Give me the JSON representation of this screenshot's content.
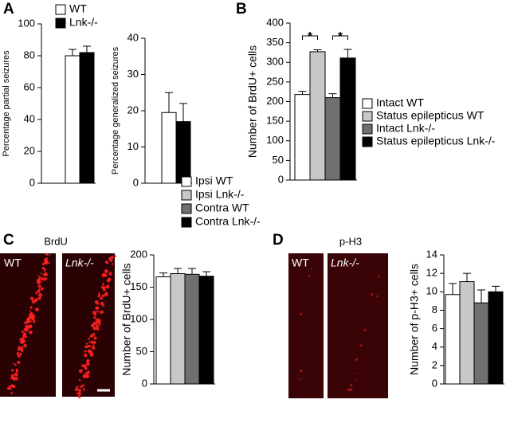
{
  "panel_labels": [
    "A",
    "B",
    "C",
    "D"
  ],
  "images": [
    {
      "label": "BrdU",
      "panels": [
        "WT",
        "Lnk-/-"
      ]
    },
    {
      "label": "p-H3",
      "panels": [
        "WT",
        "Lnk-/-"
      ]
    }
  ],
  "chart_data": [
    {
      "type": "bar",
      "ylabel": "Percentage partial seizures",
      "ylim": [
        0,
        100
      ],
      "yticks": [
        0,
        20,
        40,
        60,
        80,
        100
      ],
      "series": [
        {
          "name": "WT",
          "color": "#ffffff",
          "values": [
            80
          ],
          "errors": [
            4
          ]
        },
        {
          "name": "Lnk-/-",
          "color": "#000000",
          "values": [
            82
          ],
          "errors": [
            4
          ]
        }
      ]
    },
    {
      "type": "bar",
      "ylabel": "Percentage generalized seizures",
      "ylim": [
        0,
        40
      ],
      "yticks": [
        0,
        10,
        20,
        30,
        40
      ],
      "series": [
        {
          "color": "#ffffff",
          "values": [
            19.5
          ],
          "errors": [
            5.5
          ]
        },
        {
          "color": "#000000",
          "values": [
            17
          ],
          "errors": [
            5
          ]
        }
      ]
    },
    {
      "type": "bar",
      "ylabel": "Number of BrdU+ cells",
      "ylim": [
        0,
        400
      ],
      "yticks": [
        0,
        50,
        100,
        150,
        200,
        250,
        300,
        350,
        400
      ],
      "annotations": [
        "*",
        "*"
      ],
      "series": [
        {
          "name": "Intact WT",
          "color": "#ffffff",
          "values": [
            218
          ],
          "errors": [
            8
          ]
        },
        {
          "name": "Status epilepticus WT",
          "color": "#c8c8c8",
          "values": [
            327
          ],
          "errors": [
            5
          ]
        },
        {
          "name": "Intact Lnk-/-",
          "color": "#707070",
          "values": [
            210
          ],
          "errors": [
            10
          ]
        },
        {
          "name": "Status epilepticus Lnk-/-",
          "color": "#000000",
          "values": [
            311
          ],
          "errors": [
            22
          ]
        }
      ]
    },
    {
      "type": "bar",
      "ylabel": "Number of BrdU+ cells",
      "ylim": [
        0,
        200
      ],
      "yticks": [
        0,
        50,
        100,
        150,
        200
      ],
      "series": [
        {
          "name": "Ipsi WT",
          "color": "#ffffff",
          "values": [
            166
          ],
          "errors": [
            6
          ]
        },
        {
          "name": "Ipsi Lnk-/-",
          "color": "#c8c8c8",
          "values": [
            171
          ],
          "errors": [
            8
          ]
        },
        {
          "name": "Contra WT",
          "color": "#707070",
          "values": [
            170
          ],
          "errors": [
            9
          ]
        },
        {
          "name": "Contra Lnk-/-",
          "color": "#000000",
          "values": [
            167
          ],
          "errors": [
            7
          ]
        }
      ]
    },
    {
      "type": "bar",
      "ylabel": "Number of p-H3+ cells",
      "ylim": [
        0,
        14
      ],
      "yticks": [
        0,
        2,
        4,
        6,
        8,
        10,
        12,
        14
      ],
      "series": [
        {
          "color": "#ffffff",
          "values": [
            9.7
          ],
          "errors": [
            1.2
          ]
        },
        {
          "color": "#c8c8c8",
          "values": [
            11.1
          ],
          "errors": [
            0.9
          ]
        },
        {
          "color": "#707070",
          "values": [
            8.8
          ],
          "errors": [
            1.4
          ]
        },
        {
          "color": "#000000",
          "values": [
            10
          ],
          "errors": [
            0.6
          ]
        }
      ]
    }
  ]
}
